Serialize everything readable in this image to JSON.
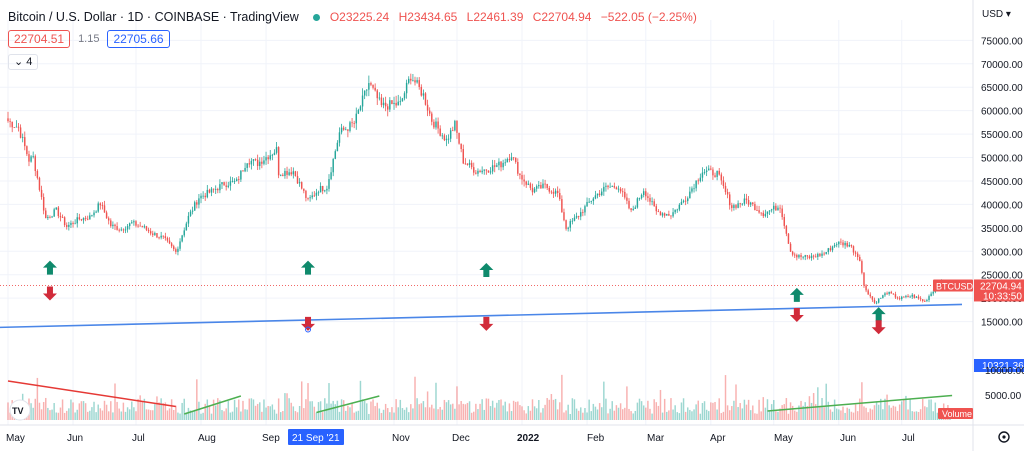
{
  "header": {
    "title": "Bitcoin / U.S. Dollar · 1D · COINBASE · TradingView",
    "open": "O23225.24",
    "high": "H23434.65",
    "low": "L22461.39",
    "close": "C22704.94",
    "change": "−522.05 (−2.25%)"
  },
  "price_row": {
    "bid": "22704.51",
    "spread": "1.15",
    "ask": "22705.66"
  },
  "indicator_toggle": "4",
  "currency": "USD",
  "price_axis": {
    "labels": [
      "75000.00",
      "70000.00",
      "65000.00",
      "60000.00",
      "55000.00",
      "50000.00",
      "45000.00",
      "40000.00",
      "35000.00",
      "30000.00",
      "25000.00",
      "20000.00",
      "15000.00"
    ],
    "current_symbol": "BTCUSD",
    "current_price": "22704.94",
    "countdown": "10:33:50",
    "trendline_value": "10321.36"
  },
  "volume_axis": {
    "labels": [
      "10000.00",
      "5000.00"
    ],
    "tag": "Volume"
  },
  "time_axis": {
    "labels": [
      "May",
      "Jun",
      "Jul",
      "Aug",
      "Sep",
      "Nov",
      "Dec",
      "2022",
      "Feb",
      "Mar",
      "Apr",
      "May",
      "Jun",
      "Jul"
    ],
    "crosshair_label": "21 Sep '21"
  },
  "colors": {
    "up": "#26a69a",
    "down": "#ef5350",
    "trendline": "#4a86e8",
    "arrow_up": "#0f8a6c",
    "arrow_down": "#d12b3a",
    "volume_trend_up": "#4caf50",
    "volume_trend_down": "#e53935"
  },
  "icons": {
    "logo": "tradingview-logo-icon",
    "settings": "gear-icon",
    "dropdown": "chevron-down-icon"
  },
  "chart_data": {
    "type": "candlestick",
    "title": "Bitcoin / U.S. Dollar",
    "series": [
      {
        "name": "BTCUSD",
        "points": [
          [
            "2021-05-01",
            57800
          ],
          [
            "2021-05-06",
            56400
          ],
          [
            "2021-05-11",
            49500
          ],
          [
            "2021-05-13",
            50000
          ],
          [
            "2021-05-19",
            37000
          ],
          [
            "2021-05-24",
            38700
          ],
          [
            "2021-05-29",
            35300
          ],
          [
            "2021-06-04",
            36900
          ],
          [
            "2021-06-09",
            37300
          ],
          [
            "2021-06-14",
            40200
          ],
          [
            "2021-06-19",
            35500
          ],
          [
            "2021-06-24",
            34700
          ],
          [
            "2021-06-29",
            36000
          ],
          [
            "2021-07-04",
            35200
          ],
          [
            "2021-07-09",
            33800
          ],
          [
            "2021-07-14",
            32800
          ],
          [
            "2021-07-20",
            29800
          ],
          [
            "2021-07-26",
            37300
          ],
          [
            "2021-07-31",
            41500
          ],
          [
            "2021-08-06",
            42800
          ],
          [
            "2021-08-12",
            44400
          ],
          [
            "2021-08-18",
            44800
          ],
          [
            "2021-08-23",
            49500
          ],
          [
            "2021-08-28",
            48800
          ],
          [
            "2021-09-06",
            51700
          ],
          [
            "2021-09-07",
            46800
          ],
          [
            "2021-09-14",
            47100
          ],
          [
            "2021-09-21",
            40700
          ],
          [
            "2021-09-26",
            43200
          ],
          [
            "2021-09-30",
            43800
          ],
          [
            "2021-10-06",
            55300
          ],
          [
            "2021-10-13",
            57300
          ],
          [
            "2021-10-20",
            65900
          ],
          [
            "2021-10-26",
            60900
          ],
          [
            "2021-10-31",
            61300
          ],
          [
            "2021-11-04",
            61400
          ],
          [
            "2021-11-09",
            67500
          ],
          [
            "2021-11-15",
            63300
          ],
          [
            "2021-11-19",
            58000
          ],
          [
            "2021-11-26",
            53700
          ],
          [
            "2021-11-30",
            57000
          ],
          [
            "2021-12-04",
            49300
          ],
          [
            "2021-12-10",
            47100
          ],
          [
            "2021-12-16",
            47600
          ],
          [
            "2021-12-22",
            48600
          ],
          [
            "2021-12-27",
            50700
          ],
          [
            "2021-12-31",
            46200
          ],
          [
            "2022-01-06",
            43000
          ],
          [
            "2022-01-12",
            43900
          ],
          [
            "2022-01-18",
            42300
          ],
          [
            "2022-01-22",
            35000
          ],
          [
            "2022-01-28",
            37700
          ],
          [
            "2022-02-04",
            41500
          ],
          [
            "2022-02-10",
            43600
          ],
          [
            "2022-02-16",
            43900
          ],
          [
            "2022-02-22",
            38300
          ],
          [
            "2022-02-28",
            43200
          ],
          [
            "2022-03-06",
            38400
          ],
          [
            "2022-03-13",
            37800
          ],
          [
            "2022-03-20",
            41300
          ],
          [
            "2022-03-28",
            47100
          ],
          [
            "2022-04-04",
            46600
          ],
          [
            "2022-04-11",
            39500
          ],
          [
            "2022-04-18",
            40800
          ],
          [
            "2022-04-26",
            38100
          ],
          [
            "2022-05-04",
            39700
          ],
          [
            "2022-05-09",
            30100
          ],
          [
            "2022-05-12",
            28900
          ],
          [
            "2022-05-18",
            28700
          ],
          [
            "2022-05-25",
            29500
          ],
          [
            "2022-05-31",
            31800
          ],
          [
            "2022-06-06",
            31400
          ],
          [
            "2022-06-11",
            28400
          ],
          [
            "2022-06-13",
            22500
          ],
          [
            "2022-06-18",
            19000
          ],
          [
            "2022-06-24",
            21200
          ],
          [
            "2022-06-30",
            19900
          ],
          [
            "2022-07-06",
            20500
          ],
          [
            "2022-07-12",
            19300
          ],
          [
            "2022-07-19",
            23400
          ],
          [
            "2022-07-24",
            22700
          ]
        ]
      }
    ],
    "ylim": [
      10000,
      77000
    ],
    "yticks": [
      15000,
      20000,
      25000,
      30000,
      35000,
      40000,
      45000,
      50000,
      55000,
      60000,
      65000,
      70000,
      75000
    ],
    "current_price": 22704.94,
    "trendline": {
      "start": [
        "2021-05-01",
        13800
      ],
      "end": [
        "2022-07-24",
        18600
      ]
    },
    "arrows_up": [
      [
        "2021-05-21",
        26500
      ],
      [
        "2021-09-21",
        26500
      ],
      [
        "2021-12-15",
        26000
      ],
      [
        "2022-05-12",
        20700
      ],
      [
        "2022-06-20",
        16600
      ]
    ],
    "arrows_down": [
      [
        "2021-05-21",
        21000
      ],
      [
        "2021-09-21",
        14500
      ],
      [
        "2021-12-15",
        14500
      ],
      [
        "2022-05-12",
        16400
      ],
      [
        "2022-06-20",
        13800
      ]
    ],
    "volume": {
      "ylim": [
        0,
        13000
      ],
      "yticks": [
        5000,
        10000
      ]
    },
    "volume_trendlines": [
      {
        "color": "down",
        "start": [
          "2021-05-01",
          7800
        ],
        "end": [
          "2021-07-20",
          2700
        ]
      },
      {
        "color": "up",
        "start": [
          "2021-07-24",
          1200
        ],
        "end": [
          "2021-08-20",
          4800
        ]
      },
      {
        "color": "up",
        "start": [
          "2021-09-25",
          1500
        ],
        "end": [
          "2021-10-25",
          4800
        ]
      },
      {
        "color": "up",
        "start": [
          "2022-04-28",
          1800
        ],
        "end": [
          "2022-07-25",
          4900
        ]
      }
    ]
  }
}
